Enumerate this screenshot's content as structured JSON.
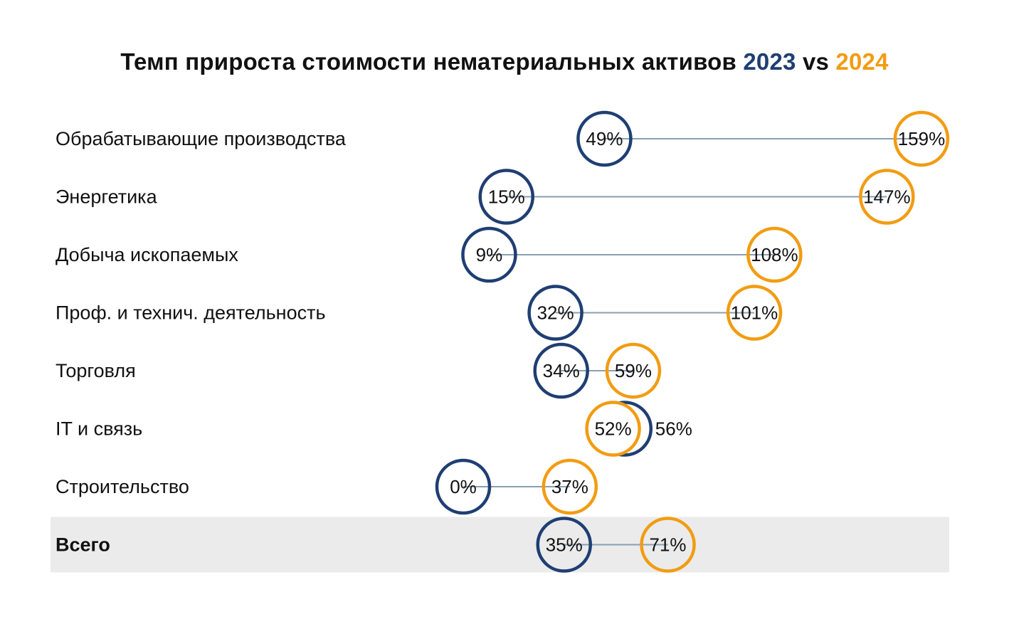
{
  "chart_data": {
    "type": "dumbbell",
    "title": {
      "prefix": "Темп прироста стоимости нематериальных активов",
      "series_a": "2023",
      "separator": "vs",
      "series_b": "2024"
    },
    "series": [
      {
        "name": "2023",
        "color": "#1f3e73"
      },
      {
        "name": "2024",
        "color": "#f29c12"
      }
    ],
    "connector_color": "#8a9fb1",
    "highlight_color": "#ebebeb",
    "x_unit": "%",
    "categories": [
      {
        "label": "Обрабатывающие производства",
        "v2023": 49,
        "v2024": 159,
        "d2023": "49%",
        "d2024": "159%",
        "bold": false,
        "highlight": false
      },
      {
        "label": "Энергетика",
        "v2023": 15,
        "v2024": 147,
        "d2023": "15%",
        "d2024": "147%",
        "bold": false,
        "highlight": false
      },
      {
        "label": "Добыча ископаемых",
        "v2023": 9,
        "v2024": 108,
        "d2023": "9%",
        "d2024": "108%",
        "bold": false,
        "highlight": false
      },
      {
        "label": "Проф. и технич. деятельность",
        "v2023": 32,
        "v2024": 101,
        "d2023": "32%",
        "d2024": "101%",
        "bold": false,
        "highlight": false
      },
      {
        "label": "Торговля",
        "v2023": 34,
        "v2024": 59,
        "d2023": "34%",
        "d2024": "59%",
        "bold": false,
        "highlight": false
      },
      {
        "label": "IT и связь",
        "v2023": 56,
        "v2024": 52,
        "d2023": "56%",
        "d2024": "52%",
        "bold": false,
        "highlight": false
      },
      {
        "label": "Строительство",
        "v2023": 0,
        "v2024": 37,
        "d2023": "0%",
        "d2024": "37%",
        "bold": false,
        "highlight": false
      },
      {
        "label": "Всего",
        "v2023": 35,
        "v2024": 71,
        "d2023": "35%",
        "d2024": "71%",
        "bold": true,
        "highlight": true
      }
    ]
  }
}
